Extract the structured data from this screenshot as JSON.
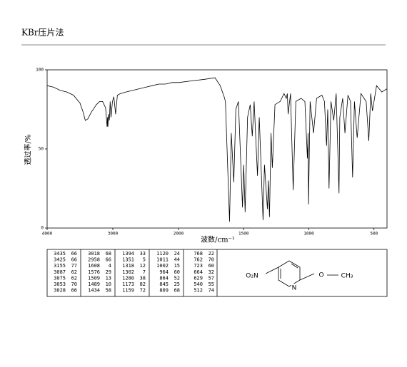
{
  "header": {
    "title": "KBr压片法"
  },
  "chart_data": {
    "type": "line",
    "xlabel": "波数/cm⁻¹",
    "ylabel": "透过率/%",
    "xlim": [
      4000,
      400
    ],
    "xticks": [
      4000,
      3000,
      2000,
      1500,
      1000,
      500
    ],
    "x_scale_change": 2000,
    "ylim": [
      0,
      100
    ],
    "yticks": [
      0,
      50,
      100
    ],
    "series": [
      {
        "color": "#000000",
        "x": [
          4000,
          3900,
          3800,
          3700,
          3600,
          3500,
          3450,
          3420,
          3380,
          3330,
          3250,
          3200,
          3155,
          3110,
          3087,
          3080,
          3075,
          3065,
          3053,
          3040,
          3028,
          3018,
          3005,
          2985,
          2958,
          2930,
          2880,
          2800,
          2700,
          2600,
          2500,
          2400,
          2300,
          2200,
          2100,
          2000,
          1900,
          1800,
          1720,
          1680,
          1650,
          1640,
          1608,
          1595,
          1576,
          1560,
          1540,
          1509,
          1500,
          1489,
          1470,
          1450,
          1434,
          1420,
          1394,
          1380,
          1351,
          1340,
          1318,
          1310,
          1302,
          1290,
          1280,
          1260,
          1220,
          1190,
          1173,
          1165,
          1159,
          1140,
          1120,
          1100,
          1060,
          1030,
          1011,
          1006,
          1002,
          990,
          964,
          940,
          900,
          880,
          864,
          855,
          845,
          830,
          809,
          790,
          768,
          765,
          762,
          740,
          723,
          700,
          680,
          664,
          650,
          629,
          600,
          560,
          540,
          525,
          512,
          480,
          440,
          400
        ],
        "values": [
          90,
          89,
          87,
          86,
          84,
          79,
          73,
          68,
          69,
          73,
          78,
          80,
          80,
          76,
          64,
          70,
          64,
          72,
          68,
          80,
          70,
          74,
          80,
          83,
          72,
          84,
          85,
          86,
          87,
          88,
          89,
          90,
          91,
          91,
          92,
          92,
          93,
          94,
          95,
          90,
          83,
          80,
          4,
          60,
          29,
          75,
          80,
          13,
          40,
          10,
          70,
          78,
          58,
          80,
          33,
          70,
          5,
          40,
          12,
          30,
          7,
          60,
          38,
          78,
          80,
          85,
          82,
          85,
          72,
          85,
          24,
          80,
          82,
          80,
          44,
          60,
          15,
          80,
          60,
          82,
          84,
          80,
          52,
          75,
          25,
          80,
          68,
          85,
          22,
          50,
          70,
          82,
          60,
          84,
          80,
          32,
          80,
          57,
          85,
          80,
          55,
          85,
          74,
          90,
          86,
          88
        ]
      }
    ]
  },
  "table": {
    "rows": [
      [
        3435,
        66,
        3018,
        68,
        1394,
        33,
        1120,
        24,
        768,
        22
      ],
      [
        3425,
        66,
        2958,
        66,
        1351,
        5,
        1011,
        44,
        762,
        70
      ],
      [
        3155,
        77,
        1608,
        4,
        1318,
        12,
        1002,
        15,
        723,
        60
      ],
      [
        3087,
        62,
        1576,
        29,
        1302,
        7,
        964,
        60,
        664,
        32
      ],
      [
        3075,
        62,
        1509,
        13,
        1280,
        38,
        864,
        52,
        629,
        57
      ],
      [
        3053,
        70,
        1489,
        10,
        1173,
        82,
        845,
        25,
        540,
        55
      ],
      [
        3028,
        66,
        1434,
        58,
        1159,
        72,
        809,
        68,
        512,
        74
      ]
    ]
  },
  "structure": {
    "labels": [
      "O₂N",
      "N",
      "O",
      "CH₃"
    ]
  }
}
